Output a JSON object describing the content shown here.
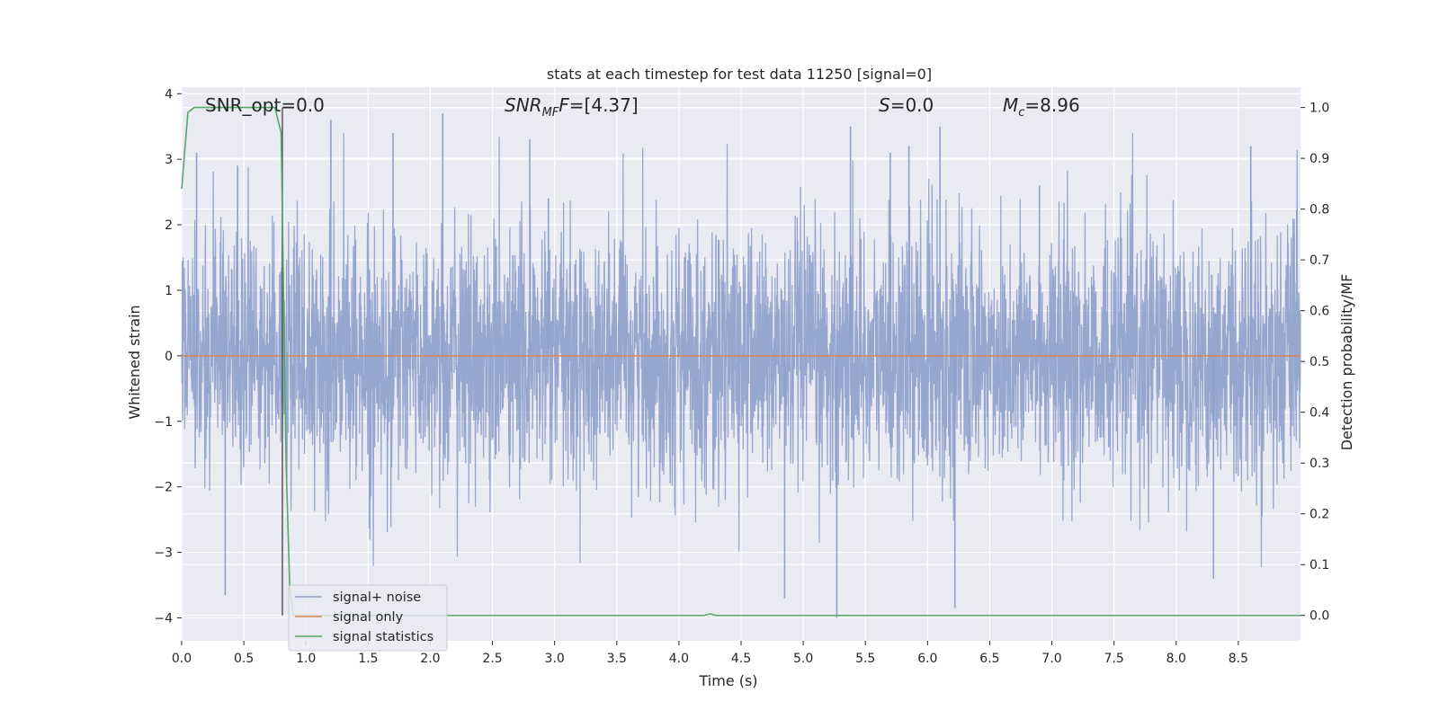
{
  "chart_data": {
    "type": "line",
    "title": "stats at each timestep for test data 11250 [signal=0]",
    "xlabel": "Time (s)",
    "ylabel_left": "Whitened strain",
    "ylabel_right": "Detection probability/MF",
    "xlim": [
      0.0,
      9.0
    ],
    "ylim_left": [
      -4.35,
      4.1
    ],
    "ylim_right": [
      -0.05,
      1.04
    ],
    "x_ticks": [
      "0.0",
      "0.5",
      "1.0",
      "1.5",
      "2.0",
      "2.5",
      "3.0",
      "3.5",
      "4.0",
      "4.5",
      "5.0",
      "5.5",
      "6.0",
      "6.5",
      "7.0",
      "7.5",
      "8.0",
      "8.5"
    ],
    "x_tick_values": [
      0.0,
      0.5,
      1.0,
      1.5,
      2.0,
      2.5,
      3.0,
      3.5,
      4.0,
      4.5,
      5.0,
      5.5,
      6.0,
      6.5,
      7.0,
      7.5,
      8.0,
      8.5
    ],
    "y_left_ticks": [
      "−4",
      "−3",
      "−2",
      "−1",
      "0",
      "1",
      "2",
      "3",
      "4"
    ],
    "y_left_tick_values": [
      -4,
      -3,
      -2,
      -1,
      0,
      1,
      2,
      3,
      4
    ],
    "y_right_ticks": [
      "0.0",
      "0.1",
      "0.2",
      "0.3",
      "0.4",
      "0.5",
      "0.6",
      "0.7",
      "0.8",
      "0.9",
      "1.0"
    ],
    "y_right_tick_values": [
      0.0,
      0.1,
      0.2,
      0.3,
      0.4,
      0.5,
      0.6,
      0.7,
      0.8,
      0.9,
      1.0
    ],
    "grid": true,
    "legend_placement": "lower-left",
    "annotations": {
      "snr_opt": "SNR_opt=0.0",
      "snr_mf_main": "SNR",
      "snr_mf_sub": "MF",
      "snr_mf_rest": "=[4.37]",
      "s_main": "S",
      "s_rest": "=0.0",
      "mc_main": "M",
      "mc_sub": "c",
      "mc_rest": "=8.96"
    },
    "vertical_marker_x": 0.81,
    "series": [
      {
        "name": "signal+ noise",
        "color": "#8da0cb",
        "axis": "left",
        "description_values": "whitened noise, approx. gaussian, range -4 to 3.7",
        "spikes": [
          [
            0.35,
            -3.65
          ],
          [
            0.45,
            2.9
          ],
          [
            0.12,
            3.1
          ],
          [
            1.2,
            3.6
          ],
          [
            1.7,
            3.4
          ],
          [
            2.1,
            3.7
          ],
          [
            2.8,
            3.3
          ],
          [
            2.95,
            2.4
          ],
          [
            4.85,
            -3.7
          ],
          [
            5.27,
            -4.0
          ],
          [
            5.38,
            3.5
          ],
          [
            5.7,
            3.1
          ],
          [
            5.85,
            3.2
          ],
          [
            6.1,
            3.5
          ],
          [
            6.22,
            -3.85
          ],
          [
            6.9,
            2.6
          ],
          [
            8.3,
            -3.4
          ],
          [
            8.6,
            3.2
          ]
        ]
      },
      {
        "name": "signal only",
        "color": "#dd8452",
        "axis": "left",
        "x": [
          0.0,
          9.0
        ],
        "values": [
          0.0,
          0.0
        ]
      },
      {
        "name": "signal statistics",
        "color": "#55a868",
        "axis": "right",
        "x": [
          0.0,
          0.02,
          0.05,
          0.1,
          0.2,
          0.4,
          0.6,
          0.75,
          0.8,
          0.84,
          0.87,
          0.9,
          1.0,
          2.0,
          3.0,
          4.0,
          4.2,
          4.25,
          4.3,
          5.0,
          6.0,
          7.0,
          8.0,
          9.0
        ],
        "values": [
          0.84,
          0.9,
          0.99,
          1.0,
          1.0,
          1.0,
          1.0,
          1.0,
          0.95,
          0.3,
          0.05,
          0.0,
          0.0,
          0.0,
          0.0,
          0.0,
          0.0,
          0.003,
          0.0,
          0.0,
          0.0,
          0.0,
          0.0,
          0.0
        ]
      }
    ]
  }
}
